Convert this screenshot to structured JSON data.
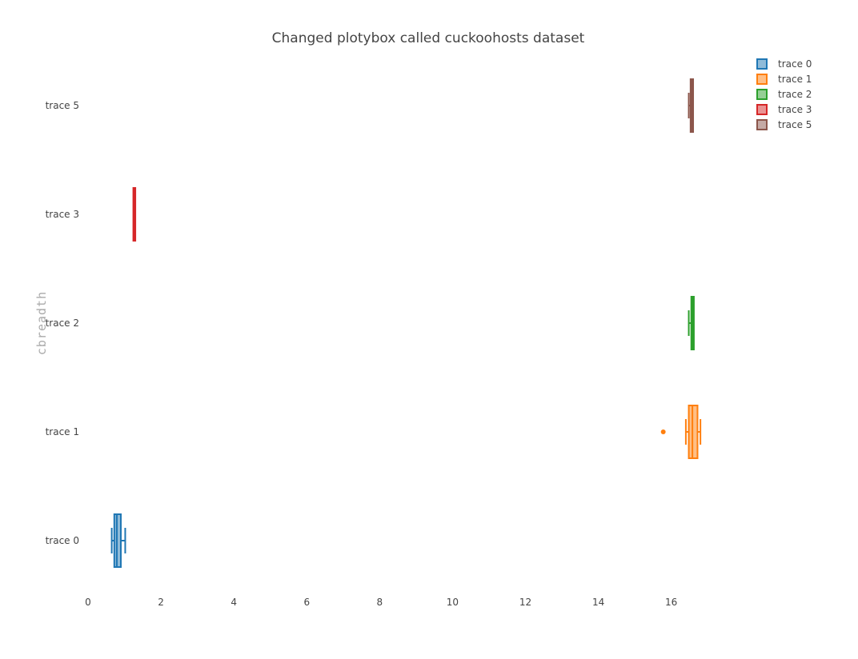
{
  "chart_data": {
    "type": "box",
    "orientation": "horizontal",
    "title": "Changed plotybox called cuckoohosts dataset",
    "xlabel": "",
    "ylabel": "cbreadth",
    "xlim": [
      0,
      18.4
    ],
    "x_ticks": [
      0,
      2,
      4,
      6,
      8,
      10,
      12,
      14,
      16
    ],
    "categories": [
      "trace 0",
      "trace 1",
      "trace 2",
      "trace 3",
      "trace 5"
    ],
    "legend_position": "top-right",
    "grid": false,
    "series": [
      {
        "name": "trace 0",
        "color": "#1f77b4",
        "fill": "#8fbbd9",
        "lower_fence": 0.65,
        "q1": 0.72,
        "median": 0.79,
        "q3": 0.9,
        "upper_fence": 1.02,
        "mean": 0.84,
        "outliers": []
      },
      {
        "name": "trace 1",
        "color": "#ff7f0e",
        "fill": "#ffbf86",
        "lower_fence": 16.4,
        "q1": 16.48,
        "median": 16.58,
        "q3": 16.72,
        "upper_fence": 16.8,
        "mean": 16.6,
        "outliers": [
          15.78
        ]
      },
      {
        "name": "trace 2",
        "color": "#2ca02c",
        "fill": "#95cf95",
        "lower_fence": 16.48,
        "q1": 16.55,
        "median": 16.58,
        "q3": 16.62,
        "upper_fence": 16.62,
        "mean": 16.58,
        "outliers": []
      },
      {
        "name": "trace 3",
        "color": "#d62728",
        "fill": "#ea9393",
        "lower_fence": 1.27,
        "q1": 1.27,
        "median": 1.27,
        "q3": 1.27,
        "upper_fence": 1.27,
        "mean": 1.27,
        "outliers": []
      },
      {
        "name": "trace 5",
        "color": "#8c564b",
        "fill": "#c5aaa5",
        "lower_fence": 16.48,
        "q1": 16.53,
        "median": 16.56,
        "q3": 16.6,
        "upper_fence": 16.6,
        "mean": 16.56,
        "outliers": []
      }
    ]
  }
}
